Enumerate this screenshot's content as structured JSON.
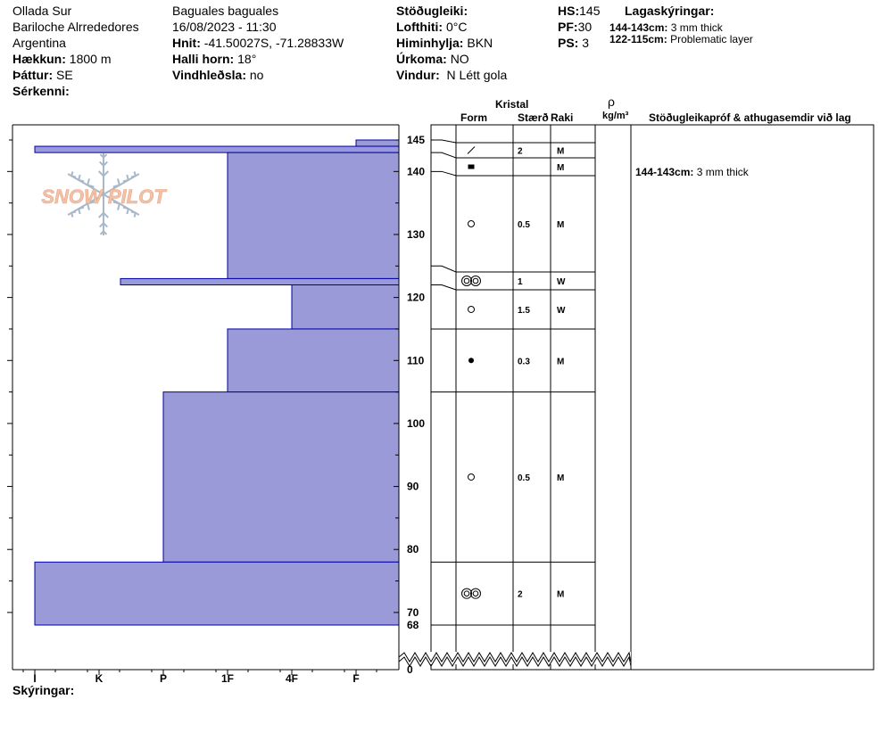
{
  "header": {
    "location": "Ollada Sur",
    "region": "Bariloche Alrrededores",
    "country": "Argentina",
    "elevation_label": "Hækkun:",
    "elevation_value": "1800 m",
    "aspect_label": "Þáttur:",
    "aspect_value": "SE",
    "specifics_label": "Sérkenni:",
    "observer": "Baguales baguales",
    "datetime": "16/08/2023 - 11:30",
    "coords_label": "Hnit:",
    "coords_value": "-41.50027S, -71.28833W",
    "slope_label": "Halli horn:",
    "slope_value": "18°",
    "wind_loading_label": "Vindhleðsla:",
    "wind_loading_value": "no",
    "stability_label": "Stöðugleiki:",
    "air_temp_label": "Lofthiti:",
    "air_temp_value": "0°C",
    "sky_label": "Himinhylja:",
    "sky_value": "BKN",
    "precip_label": "Úrkoma:",
    "precip_value": "NO",
    "wind_label": "Vindur:",
    "wind_value": "N Létt gola",
    "hs_label": "HS:",
    "hs_value": "145",
    "pf_label": "PF:",
    "pf_value": "30",
    "ps_label": "PS:",
    "ps_value": "3",
    "layer_notes_title": "Lagaskýringar:",
    "layer_notes": [
      {
        "depth": "144-143cm:",
        "text": "3 mm thick"
      },
      {
        "depth": "122-115cm:",
        "text": "Problematic layer"
      }
    ]
  },
  "columns": {
    "crystal": "Kristal",
    "form": "Form",
    "size": "Stærð",
    "moisture": "Raki",
    "density_symbol": "ρ",
    "density_unit": "kg/m³",
    "stability_notes": "Stöðugleikapróf & athugasemdir við lag"
  },
  "stability_comments": [
    {
      "depth": "144-143cm:",
      "text": "3 mm thick",
      "at_cm": 143.5
    }
  ],
  "logo_text": "SNOW PILOT",
  "legend_label": "Skýringar:",
  "colors": {
    "hardness_fill": "#9a9ad8",
    "hardness_stroke": "#0000aa",
    "logo_fill": "#f2c2a8",
    "logo_snowflake": "#a8b8c8"
  },
  "chart_data": {
    "type": "snow_profile",
    "hardness_scale": [
      "I",
      "K",
      "P",
      "1F",
      "4F",
      "F"
    ],
    "depth_ticks": [
      145,
      140,
      130,
      120,
      110,
      100,
      90,
      80,
      70,
      68,
      0
    ],
    "depth_range_cm": [
      0,
      145
    ],
    "hardness_layers": [
      {
        "top": 145,
        "bottom": 144,
        "hardness": "F"
      },
      {
        "top": 144,
        "bottom": 143,
        "hardness": "I"
      },
      {
        "top": 143,
        "bottom": 123,
        "hardness": "1F"
      },
      {
        "top": 123,
        "bottom": 122,
        "hardness": "K+"
      },
      {
        "top": 122,
        "bottom": 115,
        "hardness": "4F"
      },
      {
        "top": 115,
        "bottom": 105,
        "hardness": "1F"
      },
      {
        "top": 105,
        "bottom": 78,
        "hardness": "P"
      },
      {
        "top": 78,
        "bottom": 68,
        "hardness": "I"
      }
    ],
    "crystal_layers": [
      {
        "top": 145,
        "bottom": 143,
        "form": "decomposing-fragments",
        "size": "2",
        "moisture": "M"
      },
      {
        "top": 143,
        "bottom": 140,
        "form": "melt-freeze-crust",
        "size": "",
        "moisture": "M"
      },
      {
        "top": 140,
        "bottom": 125,
        "form": "rounded-grains",
        "size": "0.5",
        "moisture": "M"
      },
      {
        "top": 125,
        "bottom": 122,
        "form": "melt-forms",
        "size": "1",
        "moisture": "W"
      },
      {
        "top": 122,
        "bottom": 115,
        "form": "rounded-grains",
        "size": "1.5",
        "moisture": "W"
      },
      {
        "top": 115,
        "bottom": 105,
        "form": "ice-formation",
        "size": "0.3",
        "moisture": "M"
      },
      {
        "top": 105,
        "bottom": 78,
        "form": "rounded-grains",
        "size": "0.5",
        "moisture": "M"
      },
      {
        "top": 78,
        "bottom": 68,
        "form": "melt-forms",
        "size": "2",
        "moisture": "M"
      }
    ]
  }
}
